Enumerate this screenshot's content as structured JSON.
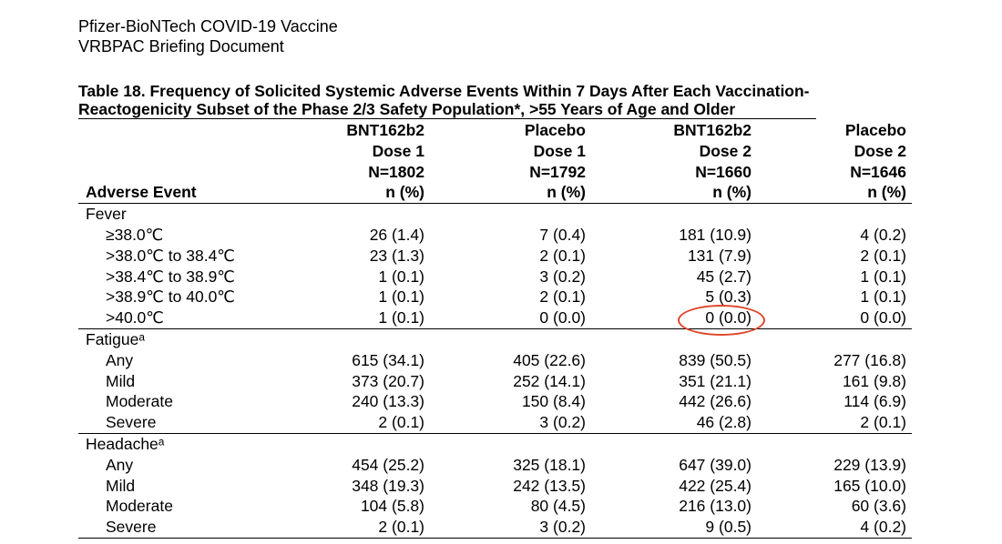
{
  "document": {
    "header_line1": "Pfizer-BioNTech COVID-19 Vaccine",
    "header_line2": "VRBPAC Briefing Document"
  },
  "table": {
    "title_line1": "Table 18. Frequency of Solicited Systemic Adverse Events Within 7 Days After Each Vaccination-",
    "title_line2": "Reactogenicity Subset of the Phase 2/3 Safety Population*, >55 Years of Age and Older",
    "columns": [
      {
        "product": "BNT162b2",
        "dose": "Dose 1",
        "n": "N=1802",
        "unit": "n (%)"
      },
      {
        "product": "Placebo",
        "dose": "Dose 1",
        "n": "N=1792",
        "unit": "n (%)"
      },
      {
        "product": "BNT162b2",
        "dose": "Dose 2",
        "n": "N=1660",
        "unit": "n (%)"
      },
      {
        "product": "Placebo",
        "dose": "Dose 2",
        "n": "N=1646",
        "unit": "n (%)"
      }
    ],
    "first_column_header": "Adverse Event",
    "groups": [
      {
        "name": "Fever",
        "rows": [
          {
            "label": "≥38.0℃",
            "values": [
              "26 (1.4)",
              "7 (0.4)",
              "181 (10.9)",
              "4 (0.2)"
            ]
          },
          {
            "label": ">38.0℃ to 38.4℃",
            "values": [
              "23 (1.3)",
              "2 (0.1)",
              "131 (7.9)",
              "2 (0.1)"
            ]
          },
          {
            "label": ">38.4℃ to 38.9℃",
            "values": [
              "1 (0.1)",
              "3 (0.2)",
              "45 (2.7)",
              "1 (0.1)"
            ]
          },
          {
            "label": ">38.9℃ to 40.0℃",
            "values": [
              "1 (0.1)",
              "2 (0.1)",
              "5 (0.3)",
              "1 (0.1)"
            ]
          },
          {
            "label": ">40.0℃",
            "values": [
              "1 (0.1)",
              "0 (0.0)",
              "0 (0.0)",
              "0 (0.0)"
            ]
          }
        ]
      },
      {
        "name": "Fatigueᵃ",
        "rows": [
          {
            "label": "Any",
            "values": [
              "615 (34.1)",
              "405 (22.6)",
              "839 (50.5)",
              "277 (16.8)"
            ]
          },
          {
            "label": "Mild",
            "values": [
              "373 (20.7)",
              "252 (14.1)",
              "351 (21.1)",
              "161 (9.8)"
            ]
          },
          {
            "label": "Moderate",
            "values": [
              "240 (13.3)",
              "150 (8.4)",
              "442 (26.6)",
              "114 (6.9)"
            ]
          },
          {
            "label": "Severe",
            "values": [
              "2 (0.1)",
              "3 (0.2)",
              "46 (2.8)",
              "2 (0.1)"
            ]
          }
        ]
      },
      {
        "name": "Headacheᵃ",
        "rows": [
          {
            "label": "Any",
            "values": [
              "454 (25.2)",
              "325 (18.1)",
              "647 (39.0)",
              "229 (13.9)"
            ]
          },
          {
            "label": "Mild",
            "values": [
              "348 (19.3)",
              "242 (13.5)",
              "422 (25.4)",
              "165 (10.0)"
            ]
          },
          {
            "label": "Moderate",
            "values": [
              "104 (5.8)",
              "80 (4.5)",
              "216 (13.0)",
              "60 (3.6)"
            ]
          },
          {
            "label": "Severe",
            "values": [
              "2 (0.1)",
              "3 (0.2)",
              "9 (0.5)",
              "4 (0.2)"
            ]
          }
        ]
      }
    ]
  },
  "annotation": {
    "color": "#e0452b"
  }
}
